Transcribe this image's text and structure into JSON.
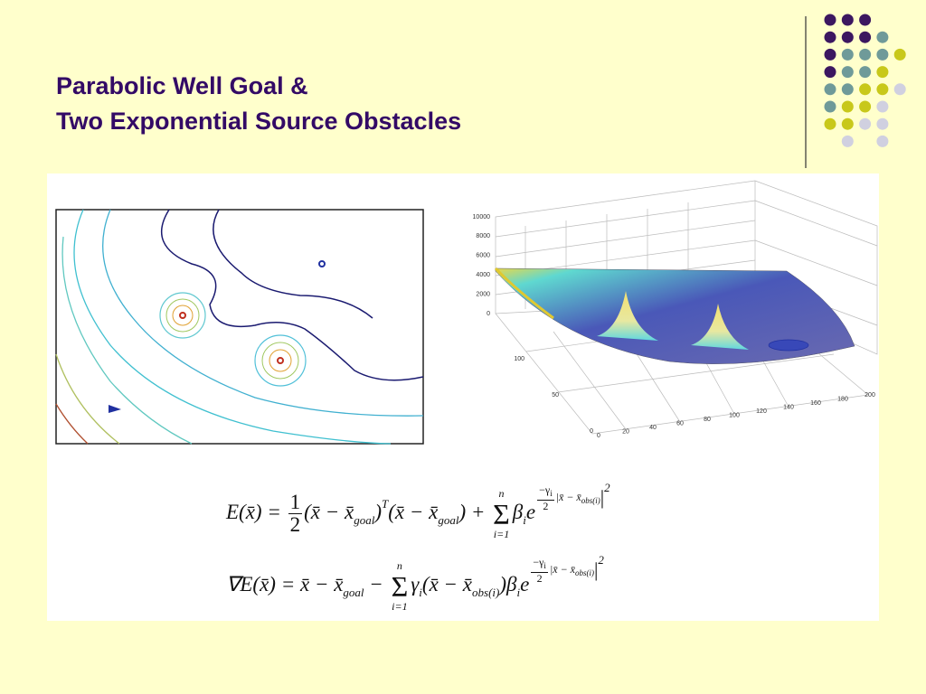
{
  "title": [
    "Parabolic Well Goal &",
    "Two Exponential Source Obstacles"
  ],
  "surface_plot": {
    "z_ticks": [
      10000,
      8000,
      6000,
      4000,
      2000,
      0
    ],
    "y_ticks": [
      100,
      50,
      0
    ],
    "x_ticks": [
      0,
      20,
      40,
      60,
      80,
      100,
      120,
      140,
      160,
      180,
      200
    ]
  },
  "equations": [
    [
      "E(x̄) = ",
      "1",
      "2",
      "(x̄ − x̄",
      "goal",
      ")",
      "T",
      "(x̄ − x̄",
      "goal",
      ") + ",
      "n",
      "Σ",
      "i=1",
      "β",
      "i",
      "e",
      "−γ",
      "i",
      "2",
      "|x̄ − x̄",
      "obs(i)",
      "|",
      "2"
    ],
    [
      "∇E(x̄) = x̄ − x̄",
      "goal",
      " − ",
      "n",
      "Σ",
      "i=1",
      "γ",
      "i",
      "(x̄ − x̄",
      "obs(i)",
      ")",
      "β",
      "i",
      "e",
      "−γ",
      "i",
      "2",
      "|x̄ − x̄",
      "obs(i)",
      "|",
      "2"
    ]
  ]
}
